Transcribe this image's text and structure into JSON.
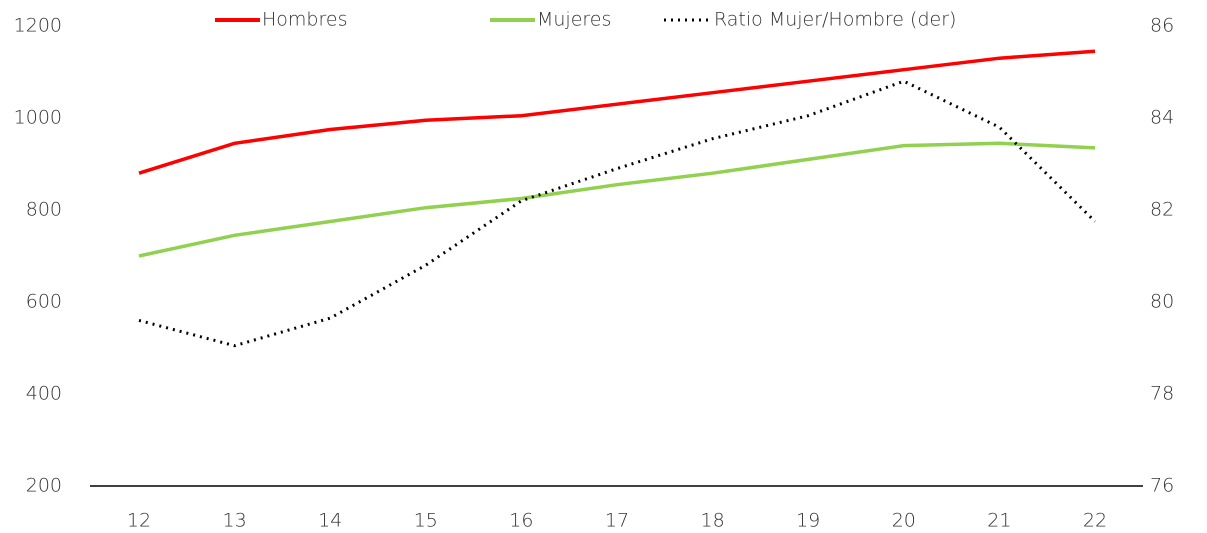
{
  "chart_data": {
    "type": "line",
    "categories": [
      "12",
      "13",
      "14",
      "15",
      "16",
      "17",
      "18",
      "19",
      "20",
      "21",
      "22"
    ],
    "series": [
      {
        "name": "Hombres",
        "color": "#ff0000",
        "values": [
          880,
          945,
          975,
          995,
          1005,
          1030,
          1055,
          1080,
          1105,
          1130,
          1145
        ]
      },
      {
        "name": "Mujeres",
        "color": "#92d050",
        "values": [
          700,
          745,
          775,
          805,
          825,
          855,
          880,
          910,
          940,
          945,
          935
        ]
      },
      {
        "name": "Ratio Mujer/Hombre (der)",
        "color": "#000000",
        "dash": "dot",
        "axis": "y2",
        "values": [
          79.6,
          79.05,
          79.65,
          80.8,
          82.2,
          82.9,
          83.55,
          84.05,
          84.8,
          83.8,
          81.75
        ]
      }
    ],
    "ylim": [
      200,
      1200
    ],
    "yticks": [
      200,
      400,
      600,
      800,
      1000,
      1200
    ],
    "y2lim": [
      76,
      86
    ],
    "y2ticks": [
      76,
      78,
      80,
      82,
      84,
      86
    ],
    "grid": false,
    "legend": "top"
  }
}
